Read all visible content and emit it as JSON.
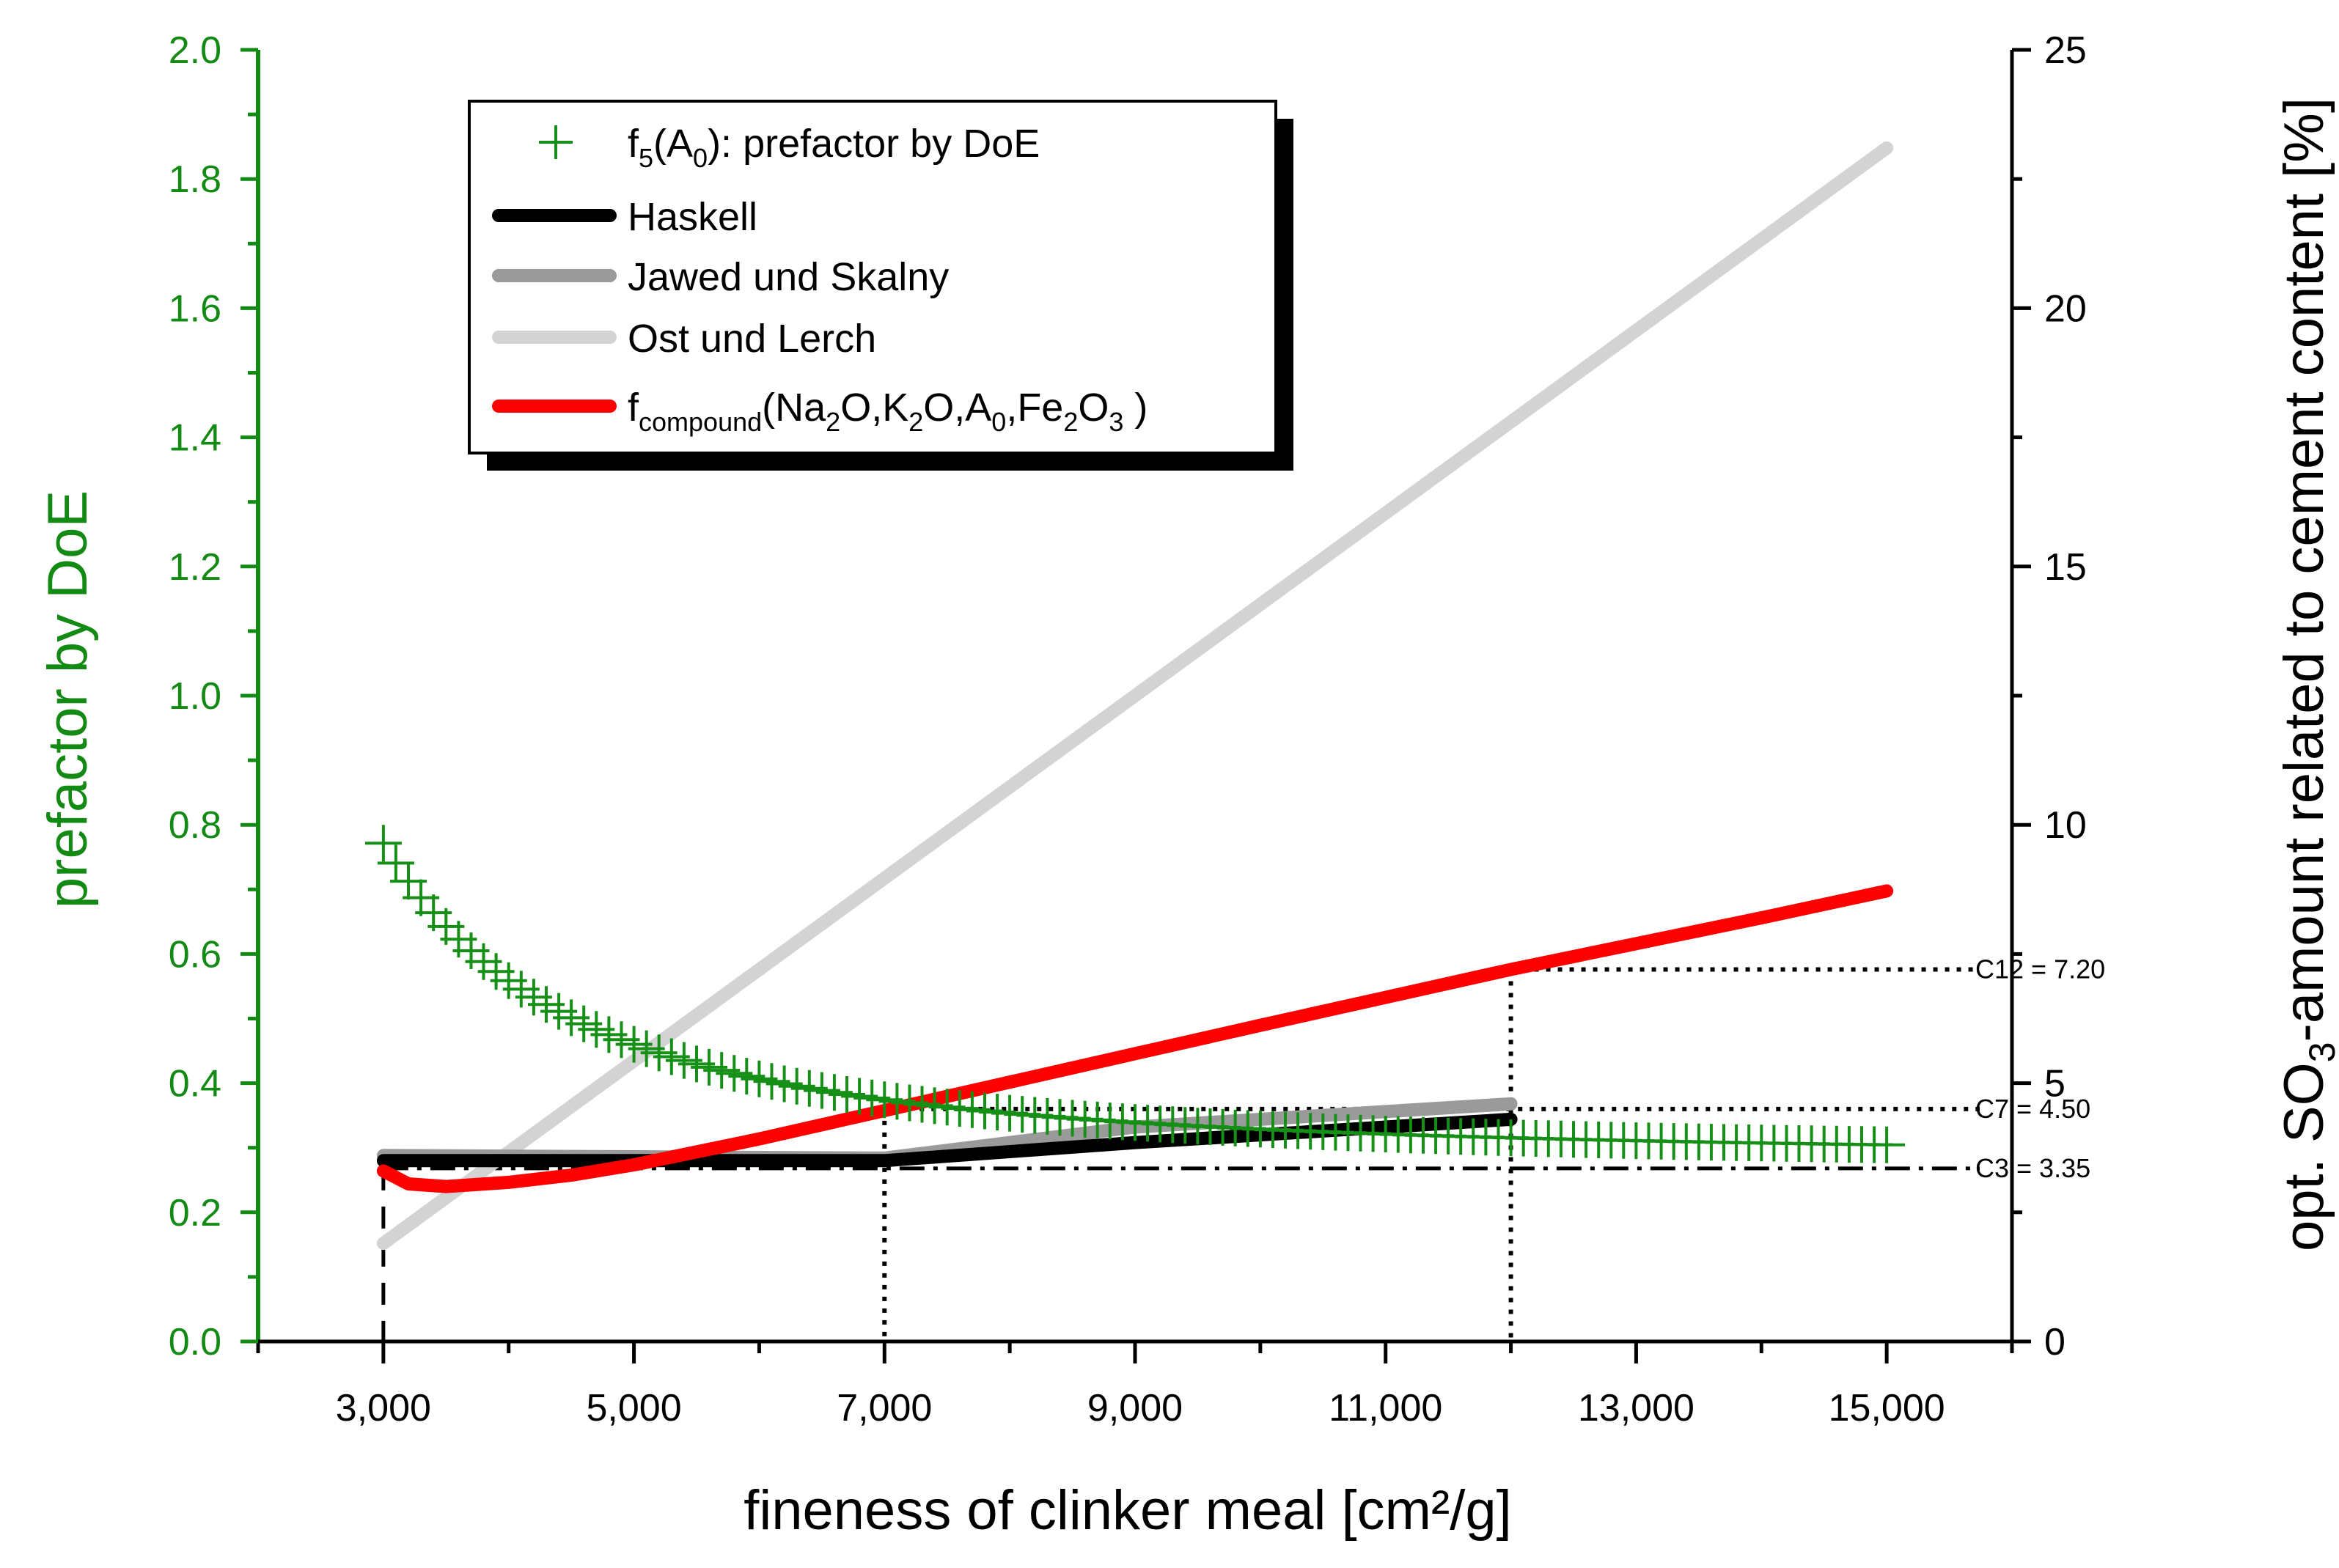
{
  "chart_data": {
    "type": "line",
    "xlabel": "fineness of clinker meal [cm²/g]",
    "ylabel_left": "prefactor by DoE",
    "ylabel_right_parts": [
      "opt. SO",
      "3",
      "-amount related to cement content [%]"
    ],
    "xlim": [
      2000,
      16000
    ],
    "ylim_left": [
      0,
      2.0
    ],
    "ylim_right": [
      0,
      25
    ],
    "x_ticks": [
      3000,
      5000,
      7000,
      9000,
      11000,
      13000,
      15000
    ],
    "x_tick_labels": [
      "3,000",
      "5,000",
      "7,000",
      "9,000",
      "11,000",
      "13,000",
      "15,000"
    ],
    "y_left_ticks": [
      0,
      0.2,
      0.4,
      0.6,
      0.8,
      1.0,
      1.2,
      1.4,
      1.6,
      1.8,
      2.0
    ],
    "y_left_tick_labels": [
      "0.0",
      "0.2",
      "0.4",
      "0.6",
      "0.8",
      "1.0",
      "1.2",
      "1.4",
      "1.6",
      "1.8",
      "2.0"
    ],
    "y_right_ticks": [
      0,
      5,
      10,
      15,
      20,
      25
    ],
    "y_right_tick_labels": [
      "0",
      "5",
      "10",
      "15",
      "20",
      "25"
    ],
    "colors": {
      "left_axis": "#138a13",
      "doe_marker": "#168f16",
      "haskell": "#000000",
      "jawed": "#9a9a9a",
      "ost": "#d3d3d3",
      "compound": "#ff0000"
    },
    "legend": {
      "placement": "top-left",
      "entries": [
        {
          "key": "doe",
          "parts": [
            [
              "f",
              ""
            ],
            [
              "5",
              "sub"
            ],
            [
              "(A",
              ""
            ],
            [
              "0",
              "sub"
            ],
            [
              "): prefactor by DoE",
              ""
            ]
          ]
        },
        {
          "key": "haskell",
          "parts": [
            [
              "Haskell",
              ""
            ]
          ]
        },
        {
          "key": "jawed",
          "parts": [
            [
              "Jawed und Skalny",
              ""
            ]
          ]
        },
        {
          "key": "ost",
          "parts": [
            [
              "Ost und Lerch",
              ""
            ]
          ]
        },
        {
          "key": "compound",
          "parts": [
            [
              "f",
              ""
            ],
            [
              "compound",
              "sub"
            ],
            [
              "(Na",
              ""
            ],
            [
              "2",
              "sub"
            ],
            [
              "O,K",
              ""
            ],
            [
              "2",
              "sub"
            ],
            [
              "O,A",
              ""
            ],
            [
              "0",
              "sub"
            ],
            [
              ",Fe",
              ""
            ],
            [
              "2",
              "sub"
            ],
            [
              "O",
              ""
            ],
            [
              "3",
              "sub"
            ],
            [
              " )",
              ""
            ]
          ]
        }
      ]
    },
    "series": [
      {
        "key": "doe",
        "axis": "left",
        "marker": "plus",
        "x_start": 3000,
        "x_end": 15000,
        "x_step": 100,
        "model": "y = 0.285 + 4.38e6 / x^2"
      },
      {
        "key": "haskell",
        "axis": "right",
        "x": [
          3000,
          7000,
          9000,
          12000
        ],
        "y": [
          3.5,
          3.5,
          3.85,
          4.3
        ]
      },
      {
        "key": "jawed",
        "axis": "right",
        "x": [
          3000,
          7000,
          9000,
          12000
        ],
        "y": [
          3.6,
          3.55,
          4.15,
          4.6
        ]
      },
      {
        "key": "ost",
        "axis": "right",
        "x": [
          3000,
          15000
        ],
        "y": [
          1.9,
          23.1
        ]
      },
      {
        "key": "compound",
        "axis": "right",
        "x": [
          3000,
          3200,
          3500,
          4000,
          4500,
          5000,
          6000,
          7000,
          8000,
          9000,
          10000,
          11000,
          12000,
          13000,
          14000,
          15000
        ],
        "y": [
          3.3,
          3.05,
          3.0,
          3.08,
          3.22,
          3.42,
          3.92,
          4.47,
          5.02,
          5.57,
          6.12,
          6.66,
          7.2,
          7.7,
          8.2,
          8.72
        ]
      }
    ],
    "reference_lines": [
      {
        "key": "c3",
        "label": "C3 = 3.35",
        "x": 3000,
        "y": 3.35,
        "style": "dashdot"
      },
      {
        "key": "c7",
        "label": "C7 = 4.50",
        "x": 7000,
        "y": 4.5,
        "style": "dot"
      },
      {
        "key": "c12",
        "label": "C12 = 7.20",
        "x": 12000,
        "y": 7.2,
        "style": "dot"
      }
    ]
  }
}
